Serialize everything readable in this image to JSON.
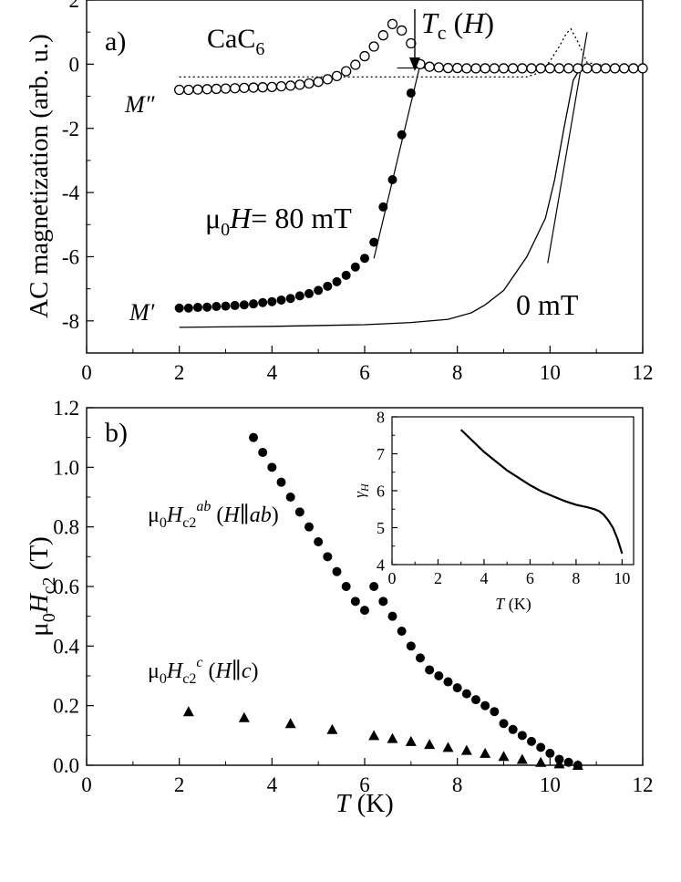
{
  "chart_data": [
    {
      "type": "line",
      "panel_label": "a)",
      "title": "CaC6",
      "xlabel": "",
      "ylabel": "AC magnetization (arb. u.)",
      "xlim": [
        0,
        12
      ],
      "ylim": [
        -9,
        2
      ],
      "xticks": [
        0,
        2,
        4,
        6,
        8,
        10,
        12
      ],
      "yticks": [
        -8,
        -6,
        -4,
        -2,
        0,
        2
      ],
      "annotations": {
        "tc_label": "Tc (H)",
        "field_label": "μ0H = 80 mT",
        "zero_field_label": "0 mT",
        "m_imag_label": "M″",
        "m_real_label": "M′"
      },
      "series": [
        {
          "name": "M' (80 mT)",
          "marker": "filled-circle",
          "x": [
            2.0,
            2.2,
            2.4,
            2.6,
            2.8,
            3.0,
            3.2,
            3.4,
            3.6,
            3.8,
            4.0,
            4.2,
            4.4,
            4.6,
            4.8,
            5.0,
            5.2,
            5.4,
            5.6,
            5.8,
            6.0,
            6.2,
            6.4,
            6.6,
            6.8,
            7.0
          ],
          "y": [
            -7.6,
            -7.6,
            -7.58,
            -7.57,
            -7.55,
            -7.54,
            -7.52,
            -7.5,
            -7.47,
            -7.43,
            -7.4,
            -7.35,
            -7.3,
            -7.22,
            -7.15,
            -7.05,
            -6.92,
            -6.78,
            -6.58,
            -6.32,
            -6.05,
            -5.55,
            -4.45,
            -3.6,
            -2.2,
            -0.9
          ]
        },
        {
          "name": "M'' (80 mT)",
          "marker": "open-circle",
          "x": [
            2.0,
            2.2,
            2.4,
            2.6,
            2.8,
            3.0,
            3.2,
            3.4,
            3.6,
            3.8,
            4.0,
            4.2,
            4.4,
            4.6,
            4.8,
            5.0,
            5.2,
            5.4,
            5.6,
            5.8,
            6.0,
            6.2,
            6.4,
            6.6,
            6.8,
            7.0,
            7.2,
            7.4,
            7.6,
            7.8,
            8.0,
            8.2,
            8.4,
            8.6,
            8.8,
            9.0,
            9.2,
            9.4,
            9.6,
            9.8,
            10.0,
            10.2,
            10.4,
            10.6,
            10.8,
            11.0,
            11.2,
            11.4,
            11.6,
            11.8,
            12.0
          ],
          "y": [
            -0.8,
            -0.8,
            -0.79,
            -0.78,
            -0.77,
            -0.76,
            -0.75,
            -0.74,
            -0.73,
            -0.72,
            -0.71,
            -0.69,
            -0.67,
            -0.64,
            -0.6,
            -0.55,
            -0.47,
            -0.37,
            -0.22,
            -0.02,
            0.25,
            0.55,
            0.9,
            1.25,
            1.05,
            0.65,
            0.0,
            -0.08,
            -0.1,
            -0.12,
            -0.12,
            -0.13,
            -0.13,
            -0.13,
            -0.13,
            -0.13,
            -0.13,
            -0.13,
            -0.13,
            -0.13,
            -0.13,
            -0.13,
            -0.13,
            -0.13,
            -0.13,
            -0.13,
            -0.13,
            -0.13,
            -0.13,
            -0.13,
            -0.13
          ]
        },
        {
          "name": "M' (0 mT)",
          "marker": "solid-line",
          "x": [
            2,
            4,
            6,
            7,
            7.8,
            8.3,
            8.6,
            9.0,
            9.5,
            9.9,
            10.1,
            10.3,
            10.5,
            10.7
          ],
          "y": [
            -8.2,
            -8.17,
            -8.12,
            -8.05,
            -7.95,
            -7.75,
            -7.5,
            -7.05,
            -6.0,
            -4.8,
            -3.6,
            -2.0,
            -0.5,
            0.0
          ]
        },
        {
          "name": "M'' (0 mT)",
          "marker": "dotted-line",
          "x": [
            2,
            9.5,
            9.8,
            10.0,
            10.2,
            10.35,
            10.45,
            10.6,
            10.8,
            11.2,
            12
          ],
          "y": [
            -0.4,
            -0.4,
            -0.25,
            0.1,
            0.55,
            0.95,
            1.1,
            0.7,
            0.05,
            -0.05,
            -0.05
          ]
        }
      ]
    },
    {
      "type": "scatter",
      "panel_label": "b)",
      "xlabel": "T (K)",
      "ylabel": "μ0Hc2 (T)",
      "xlim": [
        0,
        12
      ],
      "ylim": [
        0,
        1.2
      ],
      "xticks": [
        0,
        2,
        4,
        6,
        8,
        10,
        12
      ],
      "yticks": [
        0.0,
        0.2,
        0.4,
        0.6,
        0.8,
        1.0,
        1.2
      ],
      "annotations": {
        "ab_label": "μ0Hc2ab (H∥ab)",
        "c_label": "μ0Hc2c (H∥c)"
      },
      "series": [
        {
          "name": "Hc2 ab",
          "marker": "circle",
          "x": [
            3.6,
            3.8,
            4.0,
            4.2,
            4.4,
            4.6,
            4.8,
            5.0,
            5.2,
            5.4,
            5.6,
            5.8,
            6.0,
            6.2,
            6.4,
            6.6,
            6.8,
            7.0,
            7.2,
            7.4,
            7.6,
            7.8,
            8.0,
            8.2,
            8.4,
            8.6,
            8.8,
            9.0,
            9.2,
            9.4,
            9.6,
            9.8,
            10.0,
            10.2,
            10.4,
            10.6
          ],
          "y": [
            1.1,
            1.05,
            1.0,
            0.95,
            0.9,
            0.85,
            0.8,
            0.75,
            0.7,
            0.65,
            0.6,
            0.55,
            0.52,
            0.6,
            0.55,
            0.5,
            0.45,
            0.4,
            0.36,
            0.32,
            0.3,
            0.28,
            0.26,
            0.24,
            0.22,
            0.2,
            0.18,
            0.14,
            0.12,
            0.1,
            0.08,
            0.06,
            0.04,
            0.02,
            0.01,
            0.0
          ]
        },
        {
          "name": "Hc2 c",
          "marker": "triangle",
          "x": [
            2.2,
            3.4,
            4.4,
            5.3,
            6.2,
            6.6,
            7.0,
            7.4,
            7.8,
            8.2,
            8.6,
            9.0,
            9.4,
            9.8,
            10.2,
            10.6
          ],
          "y": [
            0.18,
            0.16,
            0.14,
            0.12,
            0.1,
            0.09,
            0.08,
            0.07,
            0.06,
            0.05,
            0.04,
            0.03,
            0.02,
            0.01,
            0.005,
            0.0
          ]
        }
      ]
    },
    {
      "type": "line",
      "panel_label": "inset",
      "xlabel": "T (K)",
      "ylabel": "γH",
      "xlim": [
        0,
        10.5
      ],
      "ylim": [
        4,
        8
      ],
      "xticks": [
        0,
        2,
        4,
        6,
        8,
        10
      ],
      "yticks": [
        4,
        5,
        6,
        7,
        8
      ],
      "series": [
        {
          "name": "gamma_H",
          "marker": "solid-line",
          "x": [
            3.0,
            3.5,
            4.0,
            4.5,
            5.0,
            5.5,
            6.0,
            6.5,
            7.0,
            7.5,
            8.0,
            8.5,
            8.8,
            9.0,
            9.2,
            9.4,
            9.6,
            9.8,
            10.0
          ],
          "y": [
            7.65,
            7.35,
            7.05,
            6.8,
            6.55,
            6.35,
            6.15,
            5.98,
            5.85,
            5.72,
            5.62,
            5.55,
            5.5,
            5.45,
            5.35,
            5.2,
            5.0,
            4.7,
            4.3
          ]
        }
      ]
    }
  ]
}
